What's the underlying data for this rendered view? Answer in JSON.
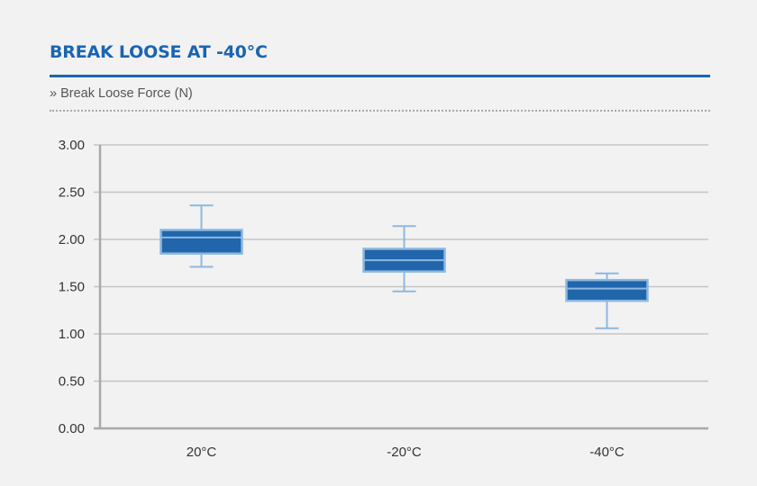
{
  "header": {
    "title": "BREAK LOOSE AT -40°C",
    "subtitle": "» Break Loose Force (N)"
  },
  "colors": {
    "accent": "#1a65b0",
    "box_fill": "#2166ab",
    "box_edge": "#8db8e0",
    "grid": "#c4c4c4",
    "axis": "#a9a9a9"
  },
  "chart_data": {
    "type": "box",
    "title": "BREAK LOOSE AT -40°C",
    "ylabel": "",
    "xlabel": "",
    "ylim": [
      0,
      3
    ],
    "y_ticks": [
      "0.00",
      "0.50",
      "1.00",
      "1.50",
      "2.00",
      "2.50",
      "3.00"
    ],
    "y_tick_values": [
      0,
      0.5,
      1,
      1.5,
      2,
      2.5,
      3
    ],
    "grid": true,
    "categories": [
      "20°C",
      "-20°C",
      "-40°C"
    ],
    "boxes": [
      {
        "min": 1.71,
        "q1": 1.85,
        "median": 2.02,
        "q3": 2.1,
        "max": 2.36
      },
      {
        "min": 1.45,
        "q1": 1.66,
        "median": 1.78,
        "q3": 1.9,
        "max": 2.14
      },
      {
        "min": 1.06,
        "q1": 1.35,
        "median": 1.48,
        "q3": 1.57,
        "max": 1.64
      }
    ]
  }
}
